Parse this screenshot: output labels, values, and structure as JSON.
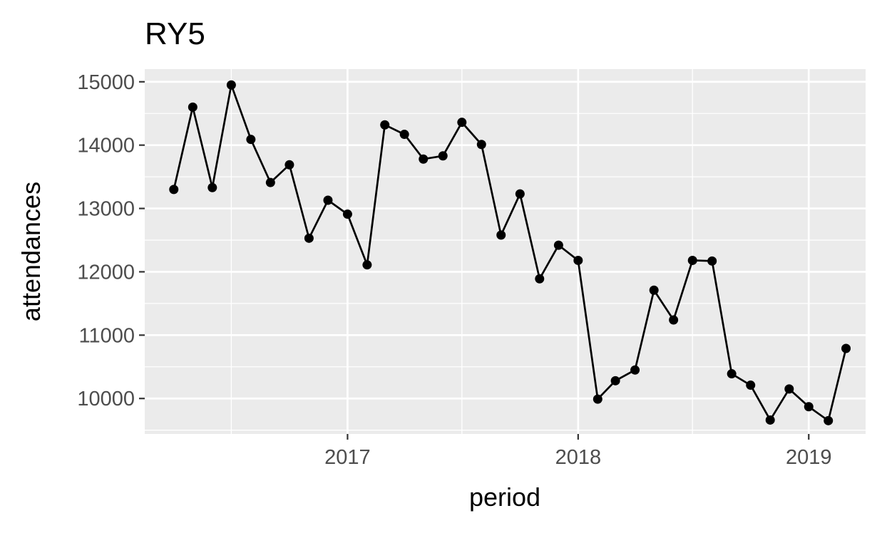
{
  "chart_data": {
    "type": "line",
    "title": "RY5",
    "xlabel": "period",
    "ylabel": "attendances",
    "x_tick_labels": [
      "2017",
      "2018",
      "2019"
    ],
    "y_tick_labels": [
      "10000",
      "11000",
      "12000",
      "13000",
      "14000",
      "15000"
    ],
    "xlim": [
      "2016-02-15",
      "2019-04-01"
    ],
    "ylim": [
      9440,
      15200
    ],
    "grid": true,
    "legend": "none",
    "colors": {
      "panel": "#EBEBEB",
      "grid": "#FFFFFF",
      "line": "#000000",
      "point": "#000000",
      "tick_label": "#4D4D4D"
    },
    "series": [
      {
        "x": [
          "2016-04-01",
          "2016-05-01",
          "2016-06-01",
          "2016-07-01",
          "2016-08-01",
          "2016-09-01",
          "2016-10-01",
          "2016-11-01",
          "2016-12-01",
          "2017-01-01",
          "2017-02-01",
          "2017-03-01",
          "2017-04-01",
          "2017-05-01",
          "2017-06-01",
          "2017-07-01",
          "2017-08-01",
          "2017-09-01",
          "2017-10-01",
          "2017-11-01",
          "2017-12-01",
          "2018-01-01",
          "2018-02-01",
          "2018-03-01",
          "2018-04-01",
          "2018-05-01",
          "2018-06-01",
          "2018-07-01",
          "2018-08-01",
          "2018-09-01",
          "2018-10-01",
          "2018-11-01",
          "2018-12-01",
          "2019-01-01",
          "2019-02-01",
          "2019-03-01"
        ],
        "values": [
          13300,
          14600,
          13330,
          14950,
          14090,
          13410,
          13690,
          12530,
          13130,
          12910,
          12110,
          14320,
          14170,
          13780,
          13830,
          14360,
          14010,
          12580,
          13230,
          11890,
          12420,
          12180,
          9990,
          10280,
          10450,
          11710,
          11240,
          12180,
          12170,
          10390,
          10210,
          9660,
          10150,
          9870,
          9650,
          10790
        ]
      }
    ]
  }
}
